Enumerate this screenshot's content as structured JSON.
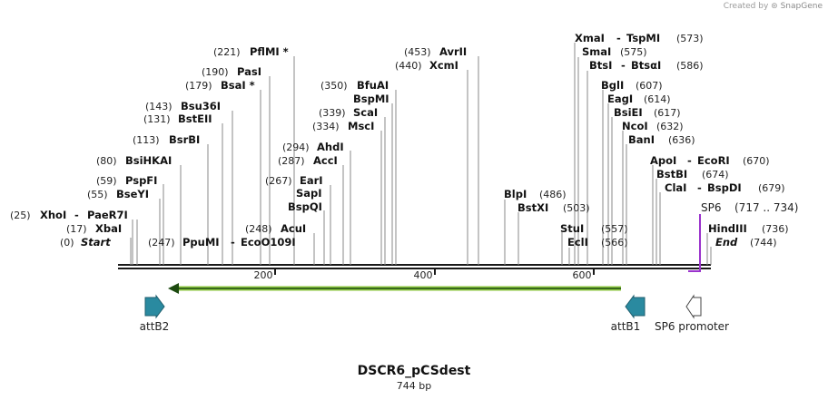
{
  "credit": {
    "prefix": "Created by",
    "brand": "SnapGene"
  },
  "map": {
    "name": "DSCR6_pCSdest",
    "length_label": "744 bp",
    "length": 744,
    "ticks": [
      {
        "value": 200,
        "label": "200"
      },
      {
        "value": 400,
        "label": "400"
      },
      {
        "value": 600,
        "label": "600"
      }
    ],
    "sites": [
      {
        "pos": "(0)",
        "name": "Start",
        "bp": 0,
        "italic": true
      },
      {
        "pos": "(17)",
        "name": "XbaI",
        "bp": 17
      },
      {
        "pos": "(25)",
        "name": "XhoI",
        "name2": "PaeR7I",
        "bp": 25
      },
      {
        "pos": "(55)",
        "name": "BseYI",
        "bp": 55
      },
      {
        "pos": "(59)",
        "name": "PspFI",
        "bp": 59
      },
      {
        "pos": "(80)",
        "name": "BsiHKAI",
        "bp": 80
      },
      {
        "pos": "(113)",
        "name": "BsrBI",
        "bp": 113
      },
      {
        "pos": "(131)",
        "name": "BstEII",
        "bp": 131
      },
      {
        "pos": "(143)",
        "name": "Bsu36I",
        "bp": 143
      },
      {
        "pos": "(179)",
        "name": "BsaI *",
        "bp": 179
      },
      {
        "pos": "(190)",
        "name": "PasI",
        "bp": 190
      },
      {
        "pos": "(221)",
        "name": "PflMI *",
        "bp": 221
      },
      {
        "pos": "(247)",
        "name": "PpuMI",
        "name2": "EcoO109I",
        "bp": 247
      },
      {
        "pos": "(248)",
        "name": "AcuI",
        "bp": 248
      },
      {
        "pos": "",
        "name": "BspQI",
        "bp": 258
      },
      {
        "pos": "",
        "name": "SapI",
        "bp": 258
      },
      {
        "pos": "(267)",
        "name": "EarI",
        "bp": 267
      },
      {
        "pos": "(287)",
        "name": "AccI",
        "bp": 287
      },
      {
        "pos": "(294)",
        "name": "AhdI",
        "bp": 294
      },
      {
        "pos": "(334)",
        "name": "MscI",
        "bp": 334
      },
      {
        "pos": "(339)",
        "name": "ScaI",
        "bp": 339
      },
      {
        "pos": "",
        "name": "BspMI",
        "bp": 350
      },
      {
        "pos": "(350)",
        "name": "BfuAI",
        "bp": 350
      },
      {
        "pos": "(440)",
        "name": "XcmI",
        "bp": 440
      },
      {
        "pos": "(453)",
        "name": "AvrII",
        "bp": 453
      },
      {
        "pos": "(486)",
        "name": "BlpI",
        "bp": 486
      },
      {
        "pos": "(503)",
        "name": "BstXI",
        "bp": 503
      },
      {
        "pos": "",
        "name": "StuI",
        "bp": 557
      },
      {
        "pos": "(557)",
        "name": "",
        "bp": 557
      },
      {
        "pos": "(566)",
        "name": "EclI",
        "bp": 566
      },
      {
        "pos": "(573)",
        "name": "XmaI",
        "name2": "TspMI",
        "bp": 573
      },
      {
        "pos": "(575)",
        "name": "SmaI",
        "bp": 575
      },
      {
        "pos": "(586)",
        "name": "BtsI",
        "name2": "BtsαI",
        "bp": 586
      },
      {
        "pos": "(607)",
        "name": "BglI",
        "bp": 607
      },
      {
        "pos": "(614)",
        "name": "EagI",
        "bp": 614
      },
      {
        "pos": "(617)",
        "name": "BsiEI",
        "bp": 617
      },
      {
        "pos": "(632)",
        "name": "NcoI",
        "bp": 632
      },
      {
        "pos": "(636)",
        "name": "BanI",
        "bp": 636
      },
      {
        "pos": "(670)",
        "name": "ApoI",
        "name2": "EcoRI",
        "bp": 670
      },
      {
        "pos": "(674)",
        "name": "BstBI",
        "bp": 674
      },
      {
        "pos": "(679)",
        "name": "ClaI",
        "name2": "BspDI",
        "bp": 679
      },
      {
        "pos": "(736)",
        "name": "HindIII",
        "bp": 736
      },
      {
        "pos": "(744)",
        "name": "End",
        "bp": 744,
        "italic": true
      }
    ],
    "primer": {
      "name": "SP6",
      "range": "(717 .. 734)",
      "color": "#9a33cc"
    },
    "features": [
      {
        "name": "attB2",
        "color": "#2a8aa0",
        "direction": "right"
      },
      {
        "name": "attB1",
        "color": "#2a8aa0",
        "direction": "left"
      },
      {
        "name": "SP6 promoter",
        "color": "#ffffff",
        "direction": "left"
      }
    ],
    "orf": {
      "color": "#8dc63f",
      "direction": "left"
    }
  }
}
